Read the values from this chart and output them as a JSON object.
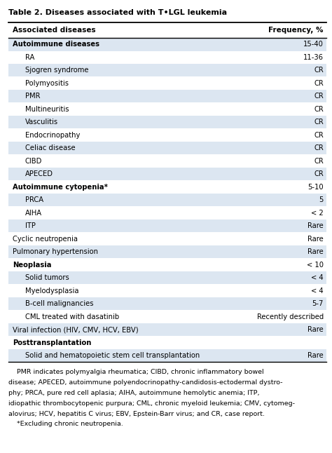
{
  "title": "Table 2. Diseases associated with T•LGL leukemia",
  "col1_header": "Associated diseases",
  "col2_header": "Frequency, %",
  "rows": [
    {
      "label": "Autoimmune diseases",
      "value": "15-40",
      "bold": true,
      "indent": 0,
      "shaded": true
    },
    {
      "label": "RA",
      "value": "11-36",
      "bold": false,
      "indent": 1,
      "shaded": false
    },
    {
      "label": "Sjogren syndrome",
      "value": "CR",
      "bold": false,
      "indent": 1,
      "shaded": true
    },
    {
      "label": "Polymyositis",
      "value": "CR",
      "bold": false,
      "indent": 1,
      "shaded": false
    },
    {
      "label": "PMR",
      "value": "CR",
      "bold": false,
      "indent": 1,
      "shaded": true
    },
    {
      "label": "Multineuritis",
      "value": "CR",
      "bold": false,
      "indent": 1,
      "shaded": false
    },
    {
      "label": "Vasculitis",
      "value": "CR",
      "bold": false,
      "indent": 1,
      "shaded": true
    },
    {
      "label": "Endocrinopathy",
      "value": "CR",
      "bold": false,
      "indent": 1,
      "shaded": false
    },
    {
      "label": "Celiac disease",
      "value": "CR",
      "bold": false,
      "indent": 1,
      "shaded": true
    },
    {
      "label": "CIBD",
      "value": "CR",
      "bold": false,
      "indent": 1,
      "shaded": false
    },
    {
      "label": "APECED",
      "value": "CR",
      "bold": false,
      "indent": 1,
      "shaded": true
    },
    {
      "label": "Autoimmune cytopenia*",
      "value": "5-10",
      "bold": true,
      "indent": 0,
      "shaded": false
    },
    {
      "label": "PRCA",
      "value": "5",
      "bold": false,
      "indent": 1,
      "shaded": true
    },
    {
      "label": "AIHA",
      "value": "< 2",
      "bold": false,
      "indent": 1,
      "shaded": false
    },
    {
      "label": "ITP",
      "value": "Rare",
      "bold": false,
      "indent": 1,
      "shaded": true
    },
    {
      "label": "Cyclic neutropenia",
      "value": "Rare",
      "bold": false,
      "indent": 0,
      "shaded": false
    },
    {
      "label": "Pulmonary hypertension",
      "value": "Rare",
      "bold": false,
      "indent": 0,
      "shaded": true
    },
    {
      "label": "Neoplasia",
      "value": "< 10",
      "bold": true,
      "indent": 0,
      "shaded": false
    },
    {
      "label": "Solid tumors",
      "value": "< 4",
      "bold": false,
      "indent": 1,
      "shaded": true
    },
    {
      "label": "Myelodysplasia",
      "value": "< 4",
      "bold": false,
      "indent": 1,
      "shaded": false
    },
    {
      "label": "B-cell malignancies",
      "value": "5-7",
      "bold": false,
      "indent": 1,
      "shaded": true
    },
    {
      "label": "CML treated with dasatinib",
      "value": "Recently described",
      "bold": false,
      "indent": 1,
      "shaded": false
    },
    {
      "label": "Viral infection (HIV, CMV, HCV, EBV)",
      "value": "Rare",
      "bold": false,
      "indent": 0,
      "shaded": true
    },
    {
      "label": "Posttransplantation",
      "value": "",
      "bold": true,
      "indent": 0,
      "shaded": false
    },
    {
      "label": "Solid and hematopoietic stem cell transplantation",
      "value": "Rare",
      "bold": false,
      "indent": 1,
      "shaded": true
    }
  ],
  "footnote_lines": [
    "    PMR indicates polymyalgia rheumatica; CIBD, chronic inflammatory bowel",
    "disease; APECED, autoimmune polyendocrinopathy-candidosis-ectodermal dystro-",
    "phy; PRCA, pure red cell aplasia; AIHA, autoimmune hemolytic anemia; ITP,",
    "idiopathic thrombocytopenic purpura; CML, chronic myeloid leukemia; CMV, cytomeg-",
    "alovirus; HCV, hepatitis C virus; EBV, Epstein-Barr virus; and CR, case report.",
    "    *Excluding chronic neutropenia."
  ],
  "shaded_color": "#dce6f1",
  "border_color": "#000000",
  "fig_width": 4.74,
  "fig_height": 6.46,
  "dpi": 100
}
